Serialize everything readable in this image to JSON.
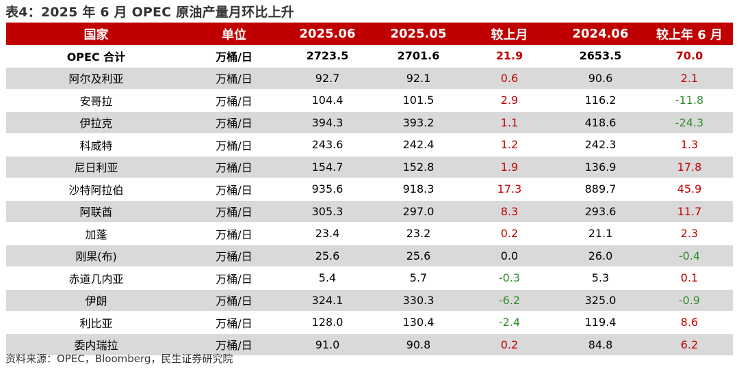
{
  "title": "表4：2025 年 6 月 OPEC 原油产量月环比上升",
  "headers": [
    "国家",
    "单位",
    "2025.06",
    "2025.05",
    "较上月",
    "2024.06",
    "较上年 6 月"
  ],
  "rows": [
    {
      "country": "OPEC 合计",
      "unit": "万桶/日",
      "jun25": "2723.5",
      "may25": "2701.6",
      "mom": "21.9",
      "jun24": "2653.5",
      "yoy": "70.0"
    },
    {
      "country": "阿尔及利亚",
      "unit": "万桶/日",
      "jun25": "92.7",
      "may25": "92.1",
      "mom": "0.6",
      "jun24": "90.6",
      "yoy": "2.1"
    },
    {
      "country": "安哥拉",
      "unit": "万桶/日",
      "jun25": "104.4",
      "may25": "101.5",
      "mom": "2.9",
      "jun24": "116.2",
      "yoy": "-11.8"
    },
    {
      "country": "伊拉克",
      "unit": "万桶/日",
      "jun25": "394.3",
      "may25": "393.2",
      "mom": "1.1",
      "jun24": "418.6",
      "yoy": "-24.3"
    },
    {
      "country": "科威特",
      "unit": "万桶/日",
      "jun25": "243.6",
      "may25": "242.4",
      "mom": "1.2",
      "jun24": "242.3",
      "yoy": "1.3"
    },
    {
      "country": "尼日利亚",
      "unit": "万桶/日",
      "jun25": "154.7",
      "may25": "152.8",
      "mom": "1.9",
      "jun24": "136.9",
      "yoy": "17.8"
    },
    {
      "country": "沙特阿拉伯",
      "unit": "万桶/日",
      "jun25": "935.6",
      "may25": "918.3",
      "mom": "17.3",
      "jun24": "889.7",
      "yoy": "45.9"
    },
    {
      "country": "阿联酋",
      "unit": "万桶/日",
      "jun25": "305.3",
      "may25": "297.0",
      "mom": "8.3",
      "jun24": "293.6",
      "yoy": "11.7"
    },
    {
      "country": "加蓬",
      "unit": "万桶/日",
      "jun25": "23.4",
      "may25": "23.2",
      "mom": "0.2",
      "jun24": "21.1",
      "yoy": "2.3"
    },
    {
      "country": "刚果(布)",
      "unit": "万桶/日",
      "jun25": "25.6",
      "may25": "25.6",
      "mom": "0.0",
      "jun24": "26.0",
      "yoy": "-0.4"
    },
    {
      "country": "赤道几内亚",
      "unit": "万桶/日",
      "jun25": "5.4",
      "may25": "5.7",
      "mom": "-0.3",
      "jun24": "5.3",
      "yoy": "0.1"
    },
    {
      "country": "伊朗",
      "unit": "万桶/日",
      "jun25": "324.1",
      "may25": "330.3",
      "mom": "-6.2",
      "jun24": "325.0",
      "yoy": "-0.9"
    },
    {
      "country": "利比亚",
      "unit": "万桶/日",
      "jun25": "128.0",
      "may25": "130.4",
      "mom": "-2.4",
      "jun24": "119.4",
      "yoy": "8.6"
    },
    {
      "country": "委内瑞拉",
      "unit": "万桶/日",
      "jun25": "91.0",
      "may25": "90.8",
      "mom": "0.2",
      "jun24": "84.8",
      "yoy": "6.2"
    }
  ],
  "source": "资料来源：OPEC，Bloomberg，民生证券研究院",
  "colors": {
    "header_bg": "#c00000",
    "positive": "#c00000",
    "negative": "#2e8b2e",
    "stripe": "#d9d9d9"
  }
}
